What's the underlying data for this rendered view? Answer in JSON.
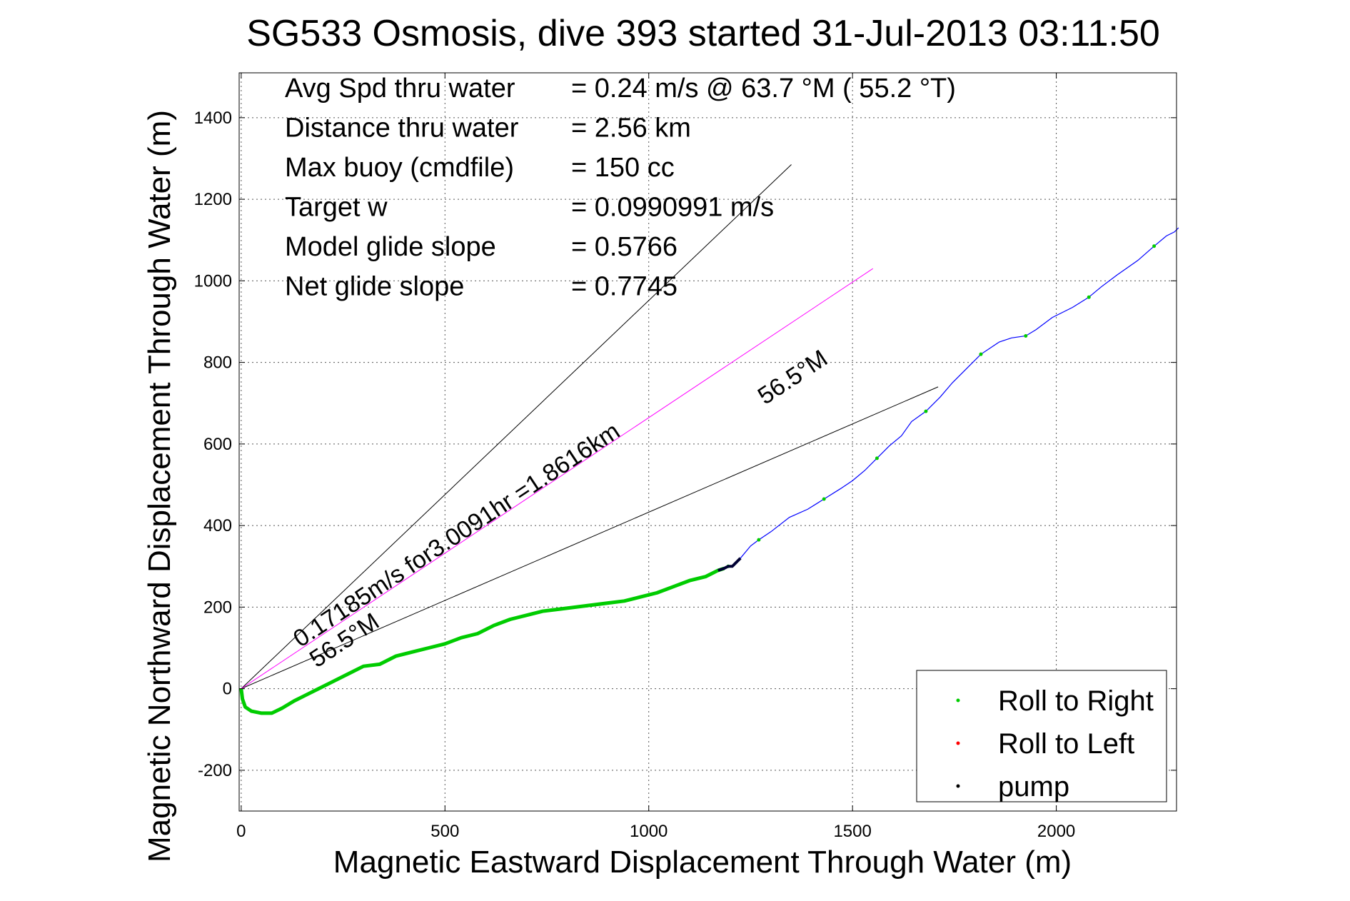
{
  "chart_data": {
    "type": "line",
    "title": "SG533 Osmosis, dive 393 started 31-Jul-2013 03:11:50",
    "xlabel": "Magnetic Eastward Displacement Through Water (m)",
    "ylabel": "Magnetic Northward Displacement Through Water (m)",
    "xlim": [
      -5,
      2295
    ],
    "ylim": [
      -300,
      1510
    ],
    "x_ticks": [
      0,
      500,
      1000,
      1500,
      2000
    ],
    "x_tick_labels": [
      "0",
      "500",
      "1000",
      "1500",
      "2000"
    ],
    "y_ticks": [
      -200,
      0,
      200,
      400,
      600,
      800,
      1000,
      1200,
      1400
    ],
    "y_tick_labels": [
      "-200",
      "0",
      "200",
      "400",
      "600",
      "800",
      "1000",
      "1200",
      "1400"
    ],
    "grid": true,
    "stats": [
      {
        "label": "Avg Spd thru water",
        "value": "=  0.24 m/s @  63.7 °M ( 55.2 °T)"
      },
      {
        "label": "Distance thru water",
        "value": "=  2.56 km"
      },
      {
        "label": "Max buoy (cmdfile)",
        "value": "= 150 cc"
      },
      {
        "label": "Target w",
        "value": "= 0.0990991 m/s"
      },
      {
        "label": "Model glide slope",
        "value": "= 0.5766"
      },
      {
        "label": "Net glide slope",
        "value": "= 0.7745"
      }
    ],
    "annotations": [
      {
        "text": "0.17185m/s for3.0091hr =1.8616km",
        "x": 145,
        "y": 100,
        "angle_deg": 33.5
      },
      {
        "text": "56.5°M",
        "x": 185,
        "y": 50,
        "angle_deg": 33.5
      },
      {
        "text": "56.5°M",
        "x": 1285,
        "y": 695,
        "angle_deg": 33.5
      }
    ],
    "reference_lines": [
      {
        "x": [
          0,
          1350
        ],
        "y": [
          0,
          1285
        ],
        "color": "#000000"
      },
      {
        "x": [
          0,
          1710
        ],
        "y": [
          0,
          740
        ],
        "color": "#000000"
      },
      {
        "x": [
          0,
          1550
        ],
        "y": [
          0,
          1030
        ],
        "color": "#ff00ff"
      }
    ],
    "series": [
      {
        "color_green": "#00cc00",
        "color_blue": "#0000ff",
        "x": [
          0,
          3,
          10,
          25,
          50,
          75,
          100,
          130,
          160,
          190,
          220,
          260,
          300,
          340,
          380,
          420,
          460,
          500,
          540,
          580,
          620,
          660,
          700,
          740,
          780,
          820,
          860,
          900,
          940,
          980,
          1020,
          1060,
          1100,
          1140,
          1170,
          1185,
          1195,
          1205,
          1225,
          1250,
          1270,
          1300,
          1345,
          1390,
          1430,
          1470,
          1500,
          1530,
          1560,
          1590,
          1620,
          1645,
          1680,
          1715,
          1745,
          1780,
          1815,
          1845,
          1860,
          1890,
          1925,
          1950,
          1990,
          2040,
          2080,
          2110,
          2150,
          2200,
          2240,
          2270,
          2290,
          2300
        ],
        "y": [
          0,
          -25,
          -45,
          -55,
          -60,
          -60,
          -48,
          -30,
          -15,
          0,
          15,
          35,
          55,
          60,
          80,
          90,
          100,
          110,
          125,
          135,
          155,
          170,
          180,
          190,
          195,
          200,
          205,
          210,
          215,
          225,
          235,
          250,
          265,
          275,
          290,
          295,
          300,
          300,
          320,
          350,
          365,
          385,
          420,
          440,
          465,
          490,
          510,
          535,
          565,
          595,
          620,
          655,
          680,
          715,
          750,
          785,
          820,
          840,
          850,
          860,
          865,
          880,
          910,
          935,
          960,
          985,
          1015,
          1050,
          1085,
          1110,
          1120,
          1130
        ],
        "green_until_index": 35
      }
    ],
    "legend": {
      "placement": "bottom-right",
      "entries": [
        {
          "label": "Roll to Right",
          "color": "#00cc00"
        },
        {
          "label": "Roll to Left",
          "color": "#ff0000"
        },
        {
          "label": "pump",
          "color": "#000000"
        }
      ]
    }
  }
}
